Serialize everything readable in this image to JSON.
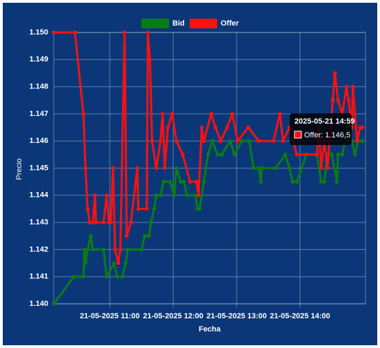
{
  "chart_data": {
    "type": "line",
    "x_label": "Fecha",
    "y_label": "Precio",
    "legend": "top",
    "grid": true,
    "xlim": [
      "2025-05-21 10:07",
      "2025-05-21 15:02"
    ],
    "xticks": [
      {
        "value": "2025-05-21 11:00",
        "label": "21-05-2025 11:00"
      },
      {
        "value": "2025-05-21 12:00",
        "label": "21-05-2025 12:00"
      },
      {
        "value": "2025-05-21 13:00",
        "label": "21-05-2025 13:00"
      },
      {
        "value": "2025-05-21 14:00",
        "label": "21-05-2025 14:00"
      }
    ],
    "ylim": [
      1.14,
      1.15
    ],
    "yticks": [
      {
        "value": 1.14,
        "label": "1.140"
      },
      {
        "value": 1.141,
        "label": "1.141"
      },
      {
        "value": 1.142,
        "label": "1.142"
      },
      {
        "value": 1.143,
        "label": "1.143"
      },
      {
        "value": 1.144,
        "label": "1.144"
      },
      {
        "value": 1.145,
        "label": "1.145"
      },
      {
        "value": 1.146,
        "label": "1.146"
      },
      {
        "value": 1.147,
        "label": "1.147"
      },
      {
        "value": 1.148,
        "label": "1.148"
      },
      {
        "value": 1.149,
        "label": "1.149"
      },
      {
        "value": 1.15,
        "label": "1.150"
      }
    ],
    "series": [
      {
        "name": "Bid",
        "color": "#0a7d12",
        "x": [
          "2025-05-21 10:07",
          "2025-05-21 10:26",
          "2025-05-21 10:35",
          "2025-05-21 10:36",
          "2025-05-21 10:37",
          "2025-05-21 10:39",
          "2025-05-21 10:42",
          "2025-05-21 10:44",
          "2025-05-21 10:54",
          "2025-05-21 10:57",
          "2025-05-21 11:04",
          "2025-05-21 11:07",
          "2025-05-21 11:12",
          "2025-05-21 11:15",
          "2025-05-21 11:17",
          "2025-05-21 11:30",
          "2025-05-21 11:33",
          "2025-05-21 11:37",
          "2025-05-21 11:39",
          "2025-05-21 11:42",
          "2025-05-21 11:44",
          "2025-05-21 11:48",
          "2025-05-21 11:51",
          "2025-05-21 11:57",
          "2025-05-21 12:01",
          "2025-05-21 12:03",
          "2025-05-21 12:07",
          "2025-05-21 12:10",
          "2025-05-21 12:13",
          "2025-05-21 12:21",
          "2025-05-21 12:23",
          "2025-05-21 12:25",
          "2025-05-21 12:29",
          "2025-05-21 12:33",
          "2025-05-21 12:37",
          "2025-05-21 12:42",
          "2025-05-21 12:46",
          "2025-05-21 12:54",
          "2025-05-21 12:58",
          "2025-05-21 13:05",
          "2025-05-21 13:12",
          "2025-05-21 13:16",
          "2025-05-21 13:21",
          "2025-05-21 13:23",
          "2025-05-21 13:24",
          "2025-05-21 13:37",
          "2025-05-21 13:46",
          "2025-05-21 13:50",
          "2025-05-21 13:53",
          "2025-05-21 13:57",
          "2025-05-21 14:06",
          "2025-05-21 14:16",
          "2025-05-21 14:20",
          "2025-05-21 14:23",
          "2025-05-21 14:26",
          "2025-05-21 14:30",
          "2025-05-21 14:35",
          "2025-05-21 14:36",
          "2025-05-21 14:40",
          "2025-05-21 14:45",
          "2025-05-21 14:49",
          "2025-05-21 14:52",
          "2025-05-21 14:55",
          "2025-05-21 14:59"
        ],
        "values": [
          1.14,
          1.141,
          1.141,
          1.142,
          1.1415,
          1.142,
          1.1425,
          1.142,
          1.142,
          1.141,
          1.1415,
          1.141,
          1.141,
          1.1415,
          1.142,
          1.142,
          1.1425,
          1.1425,
          1.143,
          1.1435,
          1.144,
          1.144,
          1.1445,
          1.1445,
          1.144,
          1.145,
          1.1445,
          1.1445,
          1.144,
          1.144,
          1.1435,
          1.1435,
          1.1445,
          1.1455,
          1.146,
          1.1455,
          1.1455,
          1.146,
          1.1455,
          1.146,
          1.146,
          1.145,
          1.145,
          1.1445,
          1.145,
          1.145,
          1.1455,
          1.145,
          1.1445,
          1.1445,
          1.1455,
          1.1455,
          1.1445,
          1.1445,
          1.1455,
          1.1455,
          1.1445,
          1.1455,
          1.1455,
          1.1465,
          1.146,
          1.1455,
          1.146,
          1.146
        ]
      },
      {
        "name": "Offer",
        "color": "#ff1010",
        "x": [
          "2025-05-21 10:07",
          "2025-05-21 10:27",
          "2025-05-21 10:35",
          "2025-05-21 10:37",
          "2025-05-21 10:39",
          "2025-05-21 10:41",
          "2025-05-21 10:44",
          "2025-05-21 10:46",
          "2025-05-21 10:47",
          "2025-05-21 10:54",
          "2025-05-21 10:57",
          "2025-05-21 10:59",
          "2025-05-21 11:01",
          "2025-05-21 11:03",
          "2025-05-21 11:05",
          "2025-05-21 11:08",
          "2025-05-21 11:10",
          "2025-05-21 11:14",
          "2025-05-21 11:16",
          "2025-05-21 11:20",
          "2025-05-21 11:26",
          "2025-05-21 11:27",
          "2025-05-21 11:35",
          "2025-05-21 11:36",
          "2025-05-21 11:38",
          "2025-05-21 11:40",
          "2025-05-21 11:44",
          "2025-05-21 11:48",
          "2025-05-21 11:50",
          "2025-05-21 11:52",
          "2025-05-21 11:55",
          "2025-05-21 11:59",
          "2025-05-21 12:03",
          "2025-05-21 12:09",
          "2025-05-21 12:16",
          "2025-05-21 12:22",
          "2025-05-21 12:24",
          "2025-05-21 12:27",
          "2025-05-21 12:29",
          "2025-05-21 12:36",
          "2025-05-21 12:40",
          "2025-05-21 12:45",
          "2025-05-21 12:51",
          "2025-05-21 12:56",
          "2025-05-21 13:01",
          "2025-05-21 13:11",
          "2025-05-21 13:21",
          "2025-05-21 13:35",
          "2025-05-21 13:41",
          "2025-05-21 13:44",
          "2025-05-21 13:50",
          "2025-05-21 13:57",
          "2025-05-21 14:16",
          "2025-05-21 14:18",
          "2025-05-21 14:20",
          "2025-05-21 14:23",
          "2025-05-21 14:26",
          "2025-05-21 14:31",
          "2025-05-21 14:33",
          "2025-05-21 14:36",
          "2025-05-21 14:40",
          "2025-05-21 14:44",
          "2025-05-21 14:46",
          "2025-05-21 14:49",
          "2025-05-21 14:50",
          "2025-05-21 14:54",
          "2025-05-21 14:57",
          "2025-05-21 14:59"
        ],
        "values": [
          1.15,
          1.15,
          1.147,
          1.145,
          1.1435,
          1.143,
          1.143,
          1.144,
          1.143,
          1.143,
          1.144,
          1.143,
          1.143,
          1.145,
          1.142,
          1.1415,
          1.142,
          1.15,
          1.1425,
          1.143,
          1.145,
          1.1435,
          1.1435,
          1.15,
          1.149,
          1.146,
          1.145,
          1.146,
          1.147,
          1.145,
          1.1465,
          1.147,
          1.146,
          1.1455,
          1.1445,
          1.1445,
          1.144,
          1.1465,
          1.146,
          1.147,
          1.1465,
          1.146,
          1.1465,
          1.147,
          1.146,
          1.1465,
          1.146,
          1.146,
          1.147,
          1.146,
          1.1465,
          1.1455,
          1.1455,
          1.1465,
          1.145,
          1.146,
          1.145,
          1.1475,
          1.1485,
          1.1475,
          1.147,
          1.148,
          1.1475,
          1.1465,
          1.148,
          1.146,
          1.1465,
          1.1465
        ]
      }
    ],
    "tooltip": {
      "title": "2025-05-21 14:59",
      "label": "Offer: 1.146,5"
    }
  }
}
